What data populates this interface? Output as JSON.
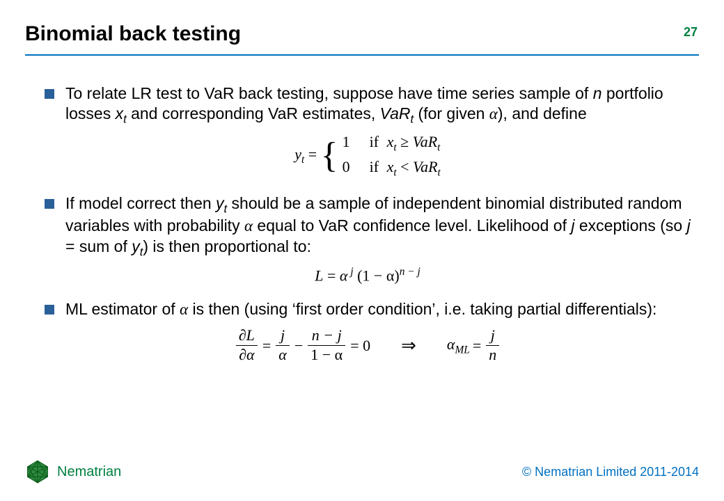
{
  "colors": {
    "accent": "#0070c0",
    "bullet": "#2a6099",
    "page_num": "#008040",
    "brand": "#008040",
    "copyright": "#0070c0",
    "logo_fill": "#2d8a3e",
    "logo_stroke": "#0a5a1a",
    "rule": "#0070c0",
    "text": "#000000",
    "background": "#ffffff"
  },
  "slide": {
    "title": "Binomial back testing",
    "page_number": "27"
  },
  "bullets": [
    {
      "pre": "To relate LR test to VaR back testing, suppose have time series sample of ",
      "n": "n",
      "mid1": " portfolio losses ",
      "xt": "x",
      "xt_sub": "t",
      "mid2": " and corresponding VaR estimates, ",
      "vart": "VaR",
      "vart_sub": "t",
      "mid3": " (for given ",
      "alpha": "α",
      "post": "), and define"
    },
    {
      "pre": "If model correct then ",
      "yt": "y",
      "yt_sub": "t",
      "mid1": " should be a sample of independent binomial distributed random variables with probability ",
      "alpha": "α",
      "mid2": " equal to VaR confidence level. Likelihood of ",
      "j1": "j",
      "mid3": " exceptions (so ",
      "j2": "j",
      "mid4": " = sum of ",
      "yt2": "y",
      "yt2_sub": "t",
      "post": ") is then proportional to:"
    },
    {
      "pre": "ML estimator of ",
      "alpha": "α",
      "post": " is then (using ‘first order condition’, i.e. taking partial differentials):"
    }
  ],
  "eq1": {
    "lhs_y": "y",
    "lhs_sub": "t",
    "eq": " = ",
    "case1_val": "1",
    "case1_if": "if ",
    "case1_x": "x",
    "case1_x_sub": "t",
    "case1_rel": " ≥ ",
    "case1_var": "VaR",
    "case1_var_sub": "t",
    "case2_val": "0",
    "case2_if": "if ",
    "case2_x": "x",
    "case2_x_sub": "t",
    "case2_rel": " < ",
    "case2_var": "VaR",
    "case2_var_sub": "t"
  },
  "eq2": {
    "L": "L",
    "eq": " = ",
    "alpha": "α",
    "sup_j": " j",
    "lp": " (",
    "one_minus_alpha": "1 − α",
    "rp": ")",
    "sup_nmj": "n − j"
  },
  "eq3": {
    "dL": "∂L",
    "da": "∂α",
    "eq1": "=",
    "j": "j",
    "alpha": "α",
    "minus": "−",
    "nmj": "n − j",
    "one_minus_alpha": "1 − α",
    "eqzero": "= 0",
    "implies": "⇒",
    "alpha_ml": "α",
    "ml_sub": "ML",
    "eq2": "=",
    "j2": "j",
    "n": "n"
  },
  "footer": {
    "brand": "Nematrian",
    "copyright": "© Nematrian Limited 2011-2014"
  }
}
